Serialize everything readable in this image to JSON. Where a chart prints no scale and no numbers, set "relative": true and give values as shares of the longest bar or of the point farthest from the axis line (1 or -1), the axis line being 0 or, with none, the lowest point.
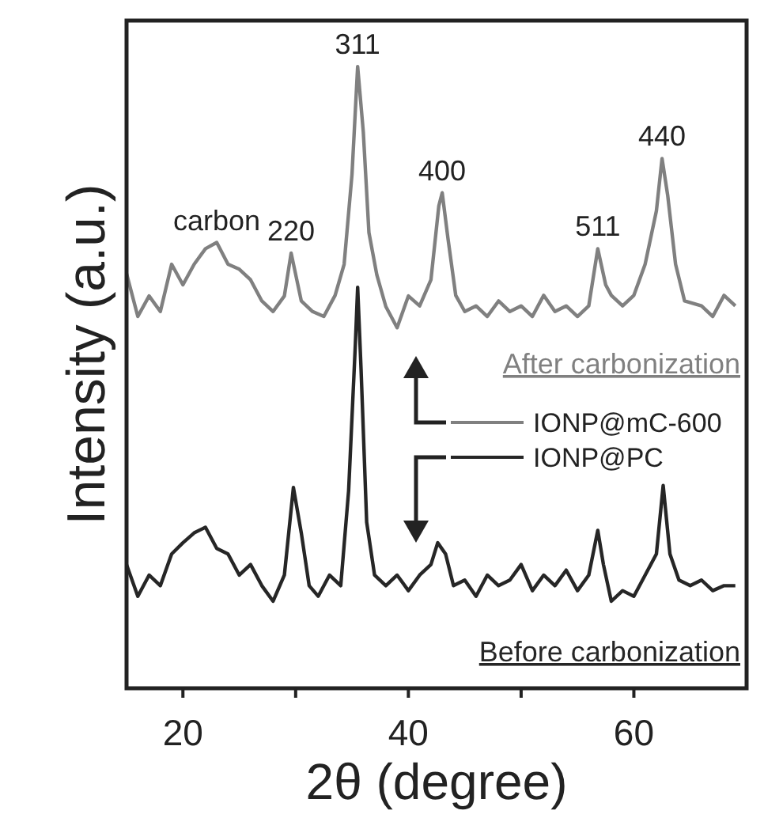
{
  "chart_data": {
    "type": "line",
    "relative": true,
    "xlabel": "2θ (degree)",
    "ylabel": "Intensity (a.u.)",
    "xlim": [
      15,
      70
    ],
    "xticks": [
      20,
      {
        "value": 30,
        "label": null
      },
      40,
      {
        "value": 50,
        "label": null
      },
      60
    ],
    "tick_labels": "x",
    "legend": "right",
    "series": [
      {
        "name": "IONP@mC-600",
        "color": "#808080",
        "x": [
          15,
          16,
          17,
          18,
          19,
          20,
          21,
          22,
          23,
          24,
          25,
          26,
          27,
          28,
          29,
          29.6,
          30.5,
          31.5,
          32.5,
          33.5,
          34.3,
          35,
          35.5,
          36,
          36.5,
          37.2,
          38,
          39,
          40,
          41,
          42,
          42.7,
          43,
          43.5,
          44.2,
          45,
          46,
          47,
          48,
          49,
          50,
          51,
          52,
          53,
          54,
          55,
          56,
          56.8,
          57.5,
          58,
          59,
          60,
          61,
          62,
          62.5,
          63,
          63.7,
          64.5,
          66,
          67,
          68,
          69
        ],
        "values": [
          0.667,
          0.598,
          0.631,
          0.606,
          0.682,
          0.649,
          0.682,
          0.707,
          0.717,
          0.682,
          0.674,
          0.657,
          0.623,
          0.606,
          0.631,
          0.7,
          0.623,
          0.606,
          0.598,
          0.632,
          0.682,
          0.827,
          1.0,
          0.895,
          0.733,
          0.665,
          0.614,
          0.58,
          0.631,
          0.615,
          0.657,
          0.776,
          0.797,
          0.725,
          0.632,
          0.606,
          0.615,
          0.598,
          0.623,
          0.606,
          0.615,
          0.598,
          0.632,
          0.606,
          0.615,
          0.598,
          0.615,
          0.707,
          0.649,
          0.632,
          0.615,
          0.632,
          0.682,
          0.768,
          0.852,
          0.793,
          0.682,
          0.623,
          0.615,
          0.598,
          0.632,
          0.615
        ]
      },
      {
        "name": "IONP@PC",
        "color": "#262626",
        "x": [
          15,
          16,
          17,
          18,
          19,
          20,
          21,
          22,
          23,
          24,
          25,
          26,
          27,
          28,
          29,
          29.8,
          30.5,
          31.2,
          32,
          33,
          34,
          34.7,
          35.3,
          35.5,
          35.8,
          36.3,
          37,
          38,
          39,
          40,
          41,
          42,
          42.6,
          43.3,
          44,
          45,
          46,
          47,
          48,
          49,
          50,
          51,
          52,
          53,
          54,
          55,
          56,
          56.8,
          57.3,
          58,
          59,
          60,
          61,
          62,
          62.6,
          63.2,
          64,
          65,
          66,
          67,
          68,
          69
        ],
        "values": [
          0.199,
          0.148,
          0.182,
          0.165,
          0.216,
          0.234,
          0.25,
          0.259,
          0.225,
          0.216,
          0.182,
          0.199,
          0.165,
          0.14,
          0.182,
          0.323,
          0.25,
          0.165,
          0.148,
          0.182,
          0.165,
          0.318,
          0.555,
          0.645,
          0.514,
          0.267,
          0.182,
          0.165,
          0.182,
          0.157,
          0.182,
          0.199,
          0.234,
          0.216,
          0.165,
          0.174,
          0.148,
          0.182,
          0.165,
          0.174,
          0.199,
          0.157,
          0.182,
          0.165,
          0.19,
          0.157,
          0.182,
          0.254,
          0.199,
          0.14,
          0.157,
          0.148,
          0.182,
          0.216,
          0.326,
          0.216,
          0.174,
          0.165,
          0.174,
          0.157,
          0.165,
          0.165
        ]
      }
    ],
    "annotations": [
      {
        "text": "carbon",
        "x": 23,
        "y": 0.717
      },
      {
        "text": "220",
        "x": 29.6,
        "y": 0.7
      },
      {
        "text": "311",
        "x": 35.5,
        "y": 1.0
      },
      {
        "text": "400",
        "x": 43,
        "y": 0.797
      },
      {
        "text": "511",
        "x": 56.8,
        "y": 0.707
      },
      {
        "text": "440",
        "x": 62.5,
        "y": 0.852
      },
      "After carbonization",
      "Before carbonization"
    ]
  }
}
